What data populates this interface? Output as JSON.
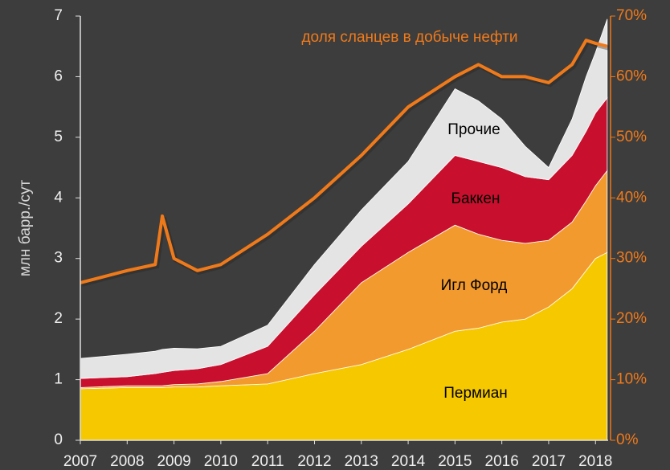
{
  "chart_data": {
    "type": "stacked_area_line",
    "y_label": "млн барр./сут",
    "x": [
      2007,
      2008,
      2008.6,
      2008.75,
      2009,
      2009.5,
      2010,
      2011,
      2012,
      2013,
      2014,
      2015,
      2015.5,
      2016,
      2016.5,
      2017,
      2017.5,
      2017.8,
      2018,
      2018.25
    ],
    "xlim": [
      2007,
      2018.27
    ],
    "xticks": [
      2007,
      2008,
      2009,
      2010,
      2011,
      2012,
      2013,
      2014,
      2015,
      2016,
      2017,
      2018
    ],
    "ylim": [
      0,
      7
    ],
    "yticks": [
      0,
      1,
      2,
      3,
      4,
      5,
      6,
      7
    ],
    "y2lim": [
      0,
      70
    ],
    "y2ticks": [
      {
        "value": 0,
        "label": "0%"
      },
      {
        "value": 10,
        "label": "10%"
      },
      {
        "value": 20,
        "label": "20%"
      },
      {
        "value": 30,
        "label": "30%"
      },
      {
        "value": 40,
        "label": "40%"
      },
      {
        "value": 50,
        "label": "50%"
      },
      {
        "value": 60,
        "label": "60%"
      },
      {
        "value": 70,
        "label": "70%"
      }
    ],
    "series": [
      {
        "name": "Пермиан",
        "color": "#f5c800",
        "values": [
          0.85,
          0.87,
          0.87,
          0.87,
          0.88,
          0.88,
          0.9,
          0.93,
          1.1,
          1.25,
          1.5,
          1.8,
          1.85,
          1.95,
          2.0,
          2.2,
          2.5,
          2.8,
          3.0,
          3.1
        ]
      },
      {
        "name": "Игл Форд",
        "color": "#f39a2e",
        "values": [
          0.02,
          0.03,
          0.03,
          0.03,
          0.04,
          0.05,
          0.07,
          0.17,
          0.7,
          1.35,
          1.6,
          1.75,
          1.55,
          1.35,
          1.25,
          1.1,
          1.1,
          1.15,
          1.2,
          1.35
        ]
      },
      {
        "name": "Баккен",
        "color": "#c8102e",
        "values": [
          0.15,
          0.15,
          0.2,
          0.22,
          0.23,
          0.25,
          0.28,
          0.45,
          0.6,
          0.6,
          0.8,
          1.15,
          1.2,
          1.2,
          1.1,
          1.0,
          1.1,
          1.15,
          1.2,
          1.2
        ]
      },
      {
        "name": "Прочие",
        "color": "#e4e4e4",
        "values": [
          0.33,
          0.37,
          0.37,
          0.38,
          0.37,
          0.33,
          0.3,
          0.35,
          0.5,
          0.6,
          0.7,
          1.1,
          1.0,
          0.8,
          0.5,
          0.2,
          0.6,
          0.9,
          1.0,
          1.3
        ]
      },
      {
        "name": "доля сланцев в добыче нефти",
        "color": "#f07a1a",
        "axis": "y2",
        "values": [
          26,
          28,
          29,
          37,
          30,
          28,
          29,
          34,
          40,
          47,
          55,
          60,
          62,
          60,
          60,
          59,
          62,
          66,
          65.5,
          65
        ]
      }
    ]
  }
}
